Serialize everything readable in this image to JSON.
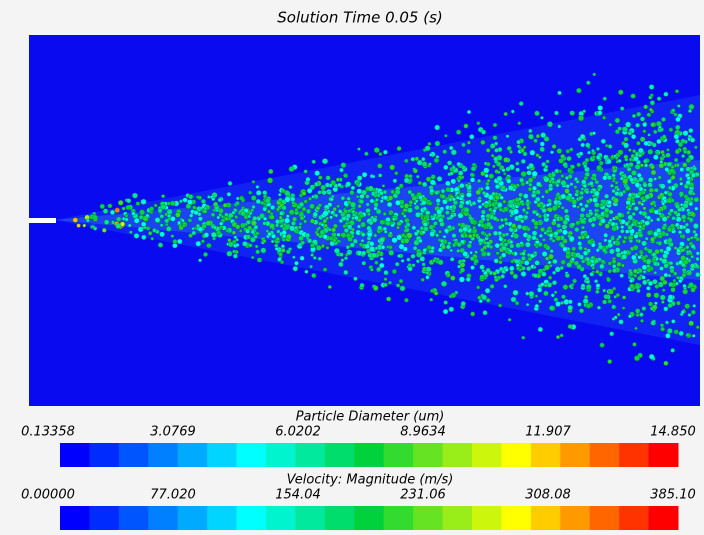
{
  "title": "Solution Time 0.05 (s)",
  "legends": [
    {
      "label": "Particle Diameter (um)",
      "ticks": [
        "0.13358",
        "3.0769",
        "6.0202",
        "8.9634",
        "11.907",
        "14.850"
      ]
    },
    {
      "label": "Velocity: Magnitude (m/s)",
      "ticks": [
        "0.00000",
        "77.020",
        "154.04",
        "231.06",
        "308.08",
        "385.10"
      ]
    }
  ]
}
